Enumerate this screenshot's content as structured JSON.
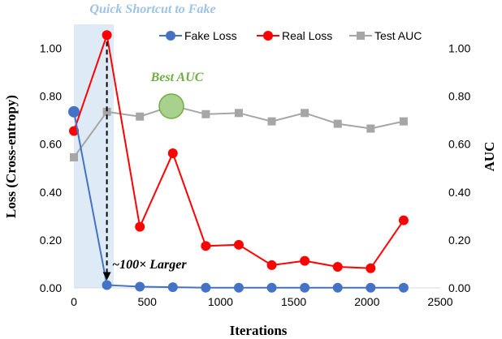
{
  "chart_data": {
    "type": "line",
    "xlabel": "Iterations",
    "ylabel": "Loss (Cross-entropy)",
    "y2label": "AUC",
    "xlim": [
      0,
      2500
    ],
    "ylim": [
      0,
      1.1
    ],
    "y2lim": [
      0,
      1.1
    ],
    "x_ticks": [
      "0",
      "500",
      "1000",
      "1500",
      "2000",
      "2500"
    ],
    "y_ticks": [
      "0.00",
      "0.20",
      "0.40",
      "0.60",
      "0.80",
      "1.00"
    ],
    "y2_ticks": [
      "0.00",
      "0.20",
      "0.40",
      "0.60",
      "0.80",
      "1.00"
    ],
    "legend_position": "top-right",
    "series": [
      {
        "name": "Fake Loss",
        "axis": "left",
        "color": "#4472C4",
        "marker": "circle",
        "x": [
          0,
          225,
          450,
          675,
          900,
          1125,
          1350,
          1575,
          1800,
          2025,
          2250
        ],
        "y": [
          0.735,
          0.012,
          0.005,
          0.003,
          0.001,
          0.001,
          0.001,
          0.001,
          0.001,
          0.001,
          0.001
        ]
      },
      {
        "name": "Real Loss",
        "axis": "left",
        "color": "#FF0000",
        "marker": "circle",
        "x": [
          0,
          225,
          450,
          675,
          900,
          1125,
          1350,
          1575,
          1800,
          2025,
          2250
        ],
        "y": [
          0.655,
          1.055,
          0.255,
          0.562,
          0.175,
          0.18,
          0.095,
          0.113,
          0.088,
          0.082,
          0.282
        ]
      },
      {
        "name": "Test AUC",
        "axis": "right",
        "color": "#A6A6A6",
        "marker": "square",
        "x": [
          0,
          225,
          450,
          675,
          900,
          1125,
          1350,
          1575,
          1800,
          2025,
          2250
        ],
        "y": [
          0.545,
          0.735,
          0.715,
          0.76,
          0.725,
          0.73,
          0.695,
          0.73,
          0.685,
          0.665,
          0.695
        ]
      }
    ],
    "annotations": {
      "shortcut_label": "Quick Shortcut to Fake",
      "best_auc_label": "Best AUC",
      "larger_label": "~100× Larger"
    },
    "colors": {
      "shade": "#DEEBF7",
      "shortcut_text": "#9DC3E6",
      "best_auc": "#70AD47",
      "best_auc_fill": "#A9D18E"
    }
  }
}
